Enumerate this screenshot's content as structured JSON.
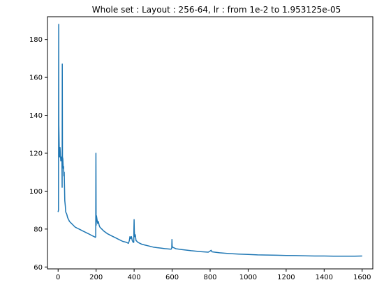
{
  "chart_data": {
    "type": "line",
    "title": "Whole set : Layout : 256-64, lr : from 1e-2 to 1.953125e-05",
    "xlabel": "",
    "ylabel": "",
    "xlim": [
      -56,
      1656
    ],
    "ylim": [
      59,
      192
    ],
    "xticks": [
      0,
      200,
      400,
      600,
      800,
      1000,
      1200,
      1400,
      1600
    ],
    "yticks": [
      60,
      80,
      100,
      120,
      140,
      160,
      180
    ],
    "grid": false,
    "legend": "none",
    "colors": {
      "line": "#1f77b4",
      "axes": "#000000",
      "background": "#ffffff"
    },
    "series": [
      {
        "points": [
          [
            0,
            89
          ],
          [
            2,
            90
          ],
          [
            3,
            188
          ],
          [
            4,
            135
          ],
          [
            6,
            122
          ],
          [
            8,
            118
          ],
          [
            10,
            123
          ],
          [
            12,
            119
          ],
          [
            14,
            116
          ],
          [
            16,
            117
          ],
          [
            18,
            118
          ],
          [
            20,
            116
          ],
          [
            21,
            102
          ],
          [
            22,
            167
          ],
          [
            23,
            118
          ],
          [
            25,
            117
          ],
          [
            27,
            112
          ],
          [
            29,
            113
          ],
          [
            30,
            108
          ],
          [
            32,
            110
          ],
          [
            35,
            95
          ],
          [
            38,
            92
          ],
          [
            40,
            89
          ],
          [
            45,
            88
          ],
          [
            50,
            86
          ],
          [
            60,
            84
          ],
          [
            70,
            83
          ],
          [
            80,
            82
          ],
          [
            90,
            81
          ],
          [
            100,
            80.5
          ],
          [
            110,
            80
          ],
          [
            120,
            79.5
          ],
          [
            130,
            79
          ],
          [
            140,
            78.5
          ],
          [
            150,
            78
          ],
          [
            160,
            77.5
          ],
          [
            170,
            77
          ],
          [
            180,
            76.5
          ],
          [
            190,
            76
          ],
          [
            196,
            75.6
          ],
          [
            198,
            76
          ],
          [
            199,
            120
          ],
          [
            200,
            82
          ],
          [
            202,
            87
          ],
          [
            205,
            85
          ],
          [
            208,
            83
          ],
          [
            212,
            84
          ],
          [
            216,
            82
          ],
          [
            220,
            81
          ],
          [
            230,
            80
          ],
          [
            240,
            79
          ],
          [
            260,
            77.5
          ],
          [
            280,
            76.5
          ],
          [
            300,
            75.5
          ],
          [
            320,
            74.5
          ],
          [
            340,
            73.5
          ],
          [
            360,
            73
          ],
          [
            370,
            72.5
          ],
          [
            375,
            74
          ],
          [
            378,
            76
          ],
          [
            382,
            75
          ],
          [
            386,
            76
          ],
          [
            390,
            74
          ],
          [
            395,
            73
          ],
          [
            398,
            73
          ],
          [
            399,
            80
          ],
          [
            400,
            85
          ],
          [
            401,
            79
          ],
          [
            403,
            76
          ],
          [
            406,
            77
          ],
          [
            410,
            74
          ],
          [
            420,
            73
          ],
          [
            440,
            72
          ],
          [
            460,
            71.5
          ],
          [
            480,
            71
          ],
          [
            500,
            70.5
          ],
          [
            520,
            70.2
          ],
          [
            540,
            70
          ],
          [
            560,
            69.7
          ],
          [
            580,
            69.5
          ],
          [
            595,
            69.4
          ],
          [
            598,
            70
          ],
          [
            599,
            74.5
          ],
          [
            600,
            71
          ],
          [
            602,
            70.5
          ],
          [
            605,
            70.3
          ],
          [
            620,
            69.6
          ],
          [
            650,
            69.2
          ],
          [
            700,
            68.6
          ],
          [
            750,
            68.1
          ],
          [
            790,
            67.8
          ],
          [
            800,
            68.4
          ],
          [
            805,
            68.8
          ],
          [
            810,
            68
          ],
          [
            850,
            67.5
          ],
          [
            900,
            67.1
          ],
          [
            950,
            66.8
          ],
          [
            1000,
            66.6
          ],
          [
            1050,
            66.4
          ],
          [
            1100,
            66.3
          ],
          [
            1150,
            66.2
          ],
          [
            1200,
            66.1
          ],
          [
            1250,
            66
          ],
          [
            1300,
            65.9
          ],
          [
            1350,
            65.8
          ],
          [
            1400,
            65.8
          ],
          [
            1450,
            65.7
          ],
          [
            1500,
            65.7
          ],
          [
            1550,
            65.7
          ],
          [
            1600,
            65.8
          ]
        ]
      }
    ]
  }
}
